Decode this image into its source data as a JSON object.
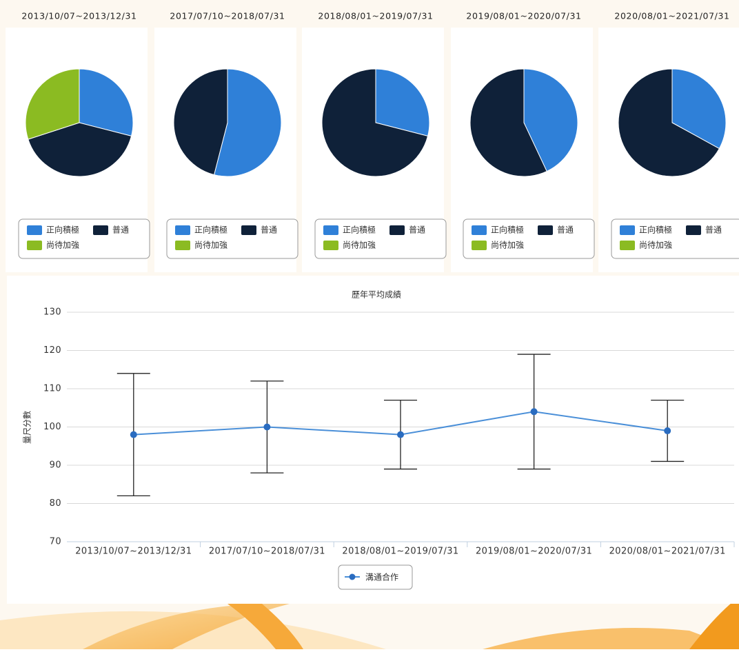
{
  "chart_data": [
    {
      "type": "pie",
      "title": "2013/10/07~2013/12/31",
      "categories": [
        "正向積極",
        "普通",
        "尚待加強"
      ],
      "colors": [
        "#2f80d8",
        "#0f2139",
        "#8bbb22"
      ],
      "values": [
        29,
        41,
        30
      ]
    },
    {
      "type": "pie",
      "title": "2017/07/10~2018/07/31",
      "categories": [
        "正向積極",
        "普通",
        "尚待加強"
      ],
      "colors": [
        "#2f80d8",
        "#0f2139",
        "#8bbb22"
      ],
      "values": [
        54,
        46,
        0
      ]
    },
    {
      "type": "pie",
      "title": "2018/08/01~2019/07/31",
      "categories": [
        "正向積極",
        "普通",
        "尚待加強"
      ],
      "colors": [
        "#2f80d8",
        "#0f2139",
        "#8bbb22"
      ],
      "values": [
        29,
        71,
        0
      ]
    },
    {
      "type": "pie",
      "title": "2019/08/01~2020/07/31",
      "categories": [
        "正向積極",
        "普通",
        "尚待加強"
      ],
      "colors": [
        "#2f80d8",
        "#0f2139",
        "#8bbb22"
      ],
      "values": [
        43,
        57,
        0
      ]
    },
    {
      "type": "pie",
      "title": "2020/08/01~2021/07/31",
      "categories": [
        "正向積極",
        "普通",
        "尚待加強"
      ],
      "colors": [
        "#2f80d8",
        "#0f2139",
        "#8bbb22"
      ],
      "values": [
        33,
        67,
        0
      ]
    },
    {
      "type": "line",
      "title": "歷年平均成績",
      "y_label": "量尺分數",
      "categories": [
        "2013/10/07~2013/12/31",
        "2017/07/10~2018/07/31",
        "2018/08/01~2019/07/31",
        "2019/08/01~2020/07/31",
        "2020/08/01~2021/07/31"
      ],
      "series": [
        {
          "name": "溝通合作",
          "color": "#4a8fd8",
          "values": [
            98,
            100,
            98,
            104,
            99
          ],
          "errors": [
            16,
            12,
            9,
            15,
            8
          ]
        }
      ],
      "ylim": [
        70,
        130
      ],
      "yticks": [
        70,
        80,
        90,
        100,
        110,
        120,
        130
      ],
      "grid": true
    }
  ]
}
